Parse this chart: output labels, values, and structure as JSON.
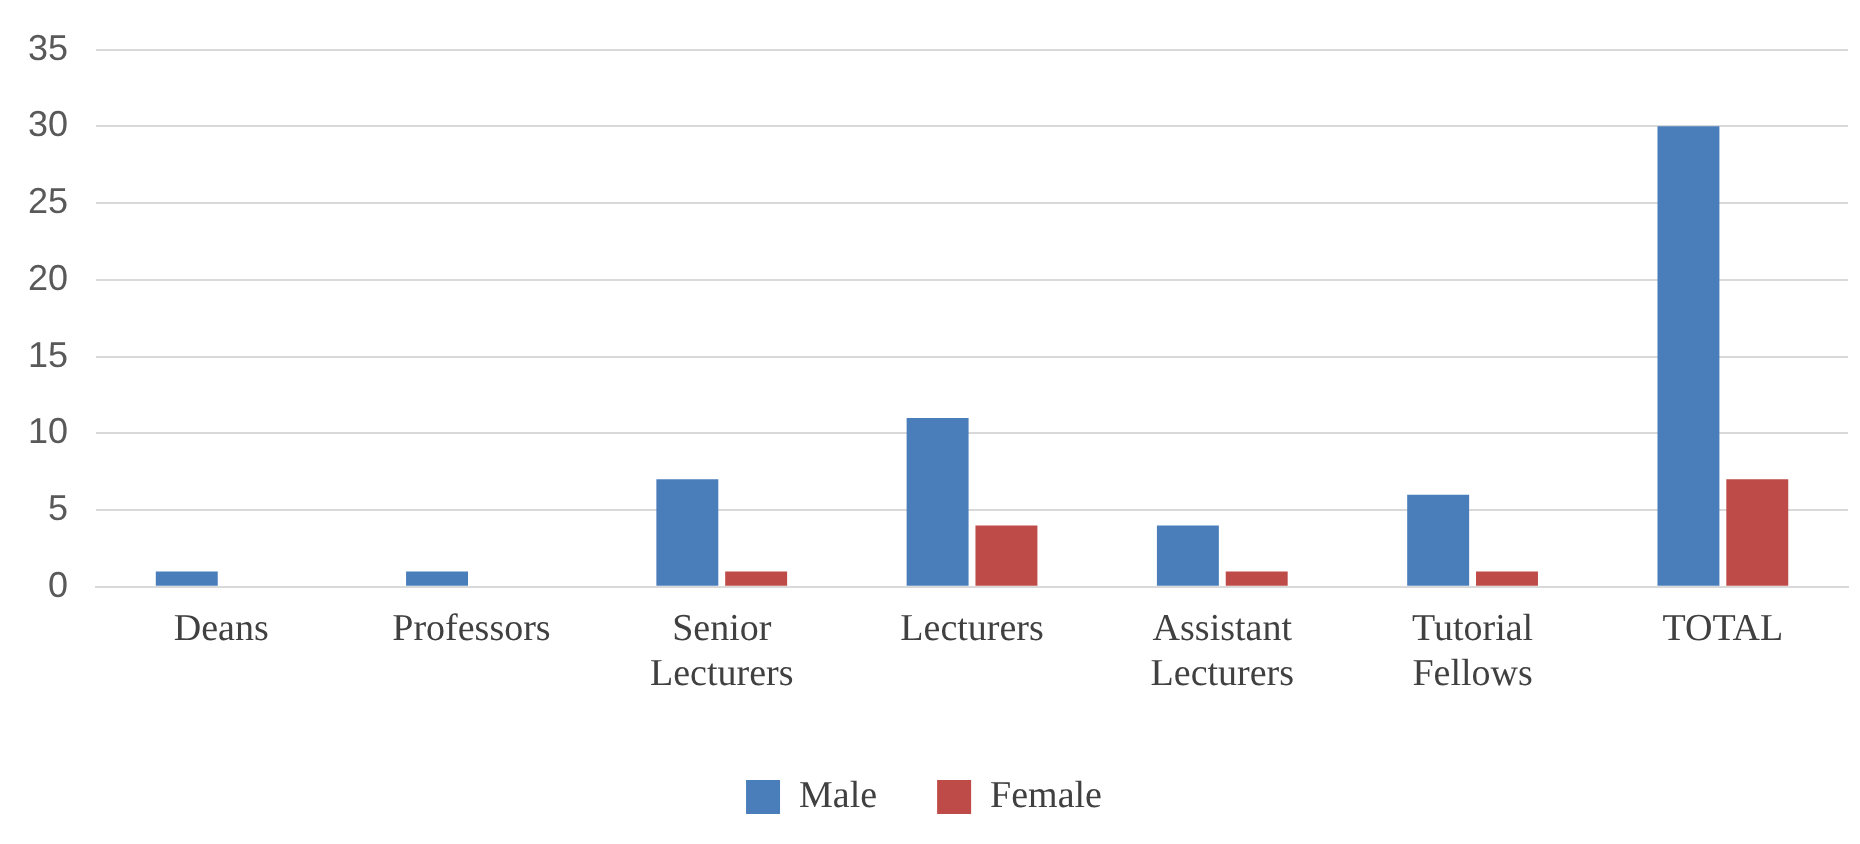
{
  "chart_data": {
    "type": "bar",
    "categories": [
      "Deans",
      "Professors",
      "Senior Lecturers",
      "Lecturers",
      "Assistant Lecturers",
      "Tutorial Fellows",
      "TOTAL"
    ],
    "series": [
      {
        "name": "Male",
        "color": "#4a7ebb",
        "values": [
          1,
          1,
          7,
          11,
          4,
          6,
          30
        ]
      },
      {
        "name": "Female",
        "color": "#be4b48",
        "values": [
          0,
          0,
          1,
          4,
          1,
          1,
          7
        ]
      }
    ],
    "ylim": [
      0,
      35
    ],
    "yticks": [
      0,
      5,
      10,
      15,
      20,
      25,
      30,
      35
    ],
    "grid": "y",
    "legend": "bottom"
  }
}
